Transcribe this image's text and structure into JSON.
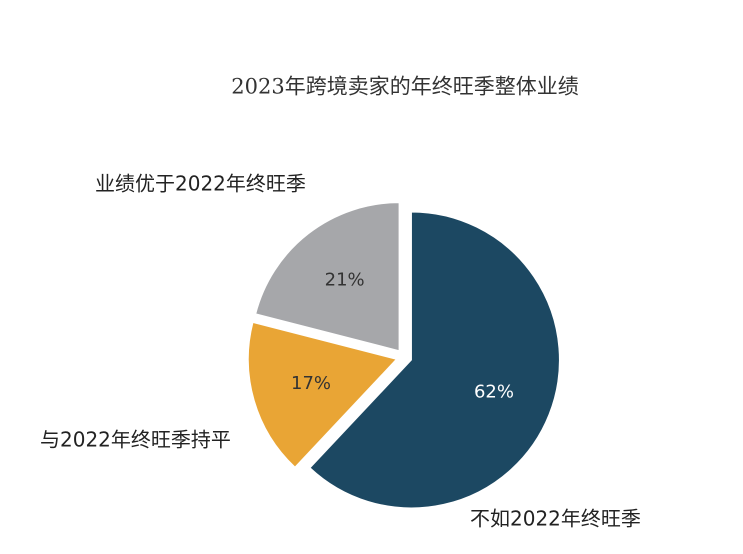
{
  "chart_data": {
    "type": "pie",
    "title": "2023年跨境卖家的年终旺季整体业绩",
    "categories": [
      "不如2022年终旺季",
      "与2022年终旺季持平",
      "业绩优于2022年终旺季"
    ],
    "values": [
      62,
      17,
      21
    ],
    "value_labels": [
      "62%",
      "17%",
      "21%"
    ],
    "colors": [
      "#1c4862",
      "#e9a535",
      "#a6a7aa"
    ]
  }
}
